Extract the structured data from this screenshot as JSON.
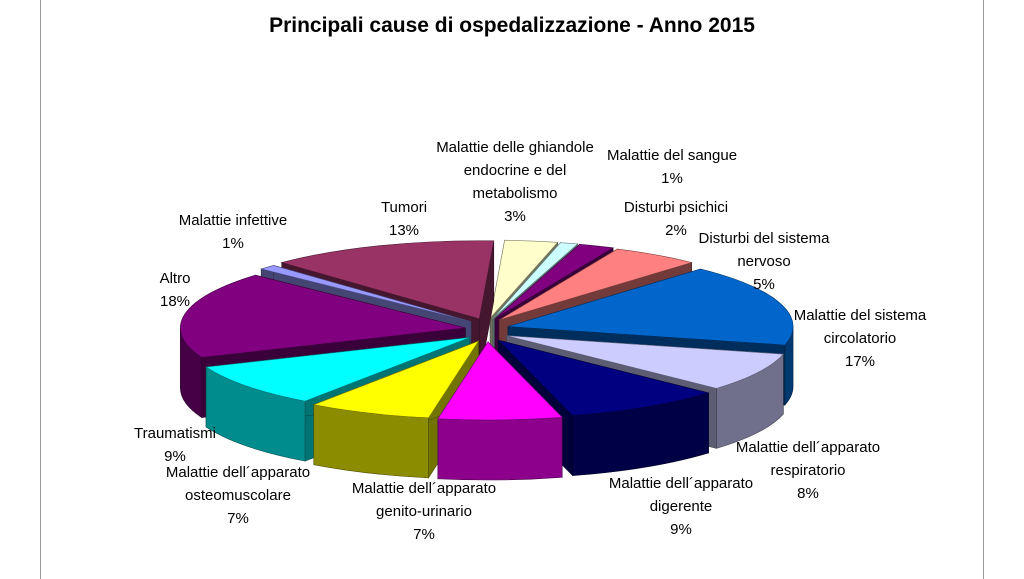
{
  "chart_data": {
    "type": "pie",
    "style": "3d-exploded",
    "title": "Principali cause di ospedalizzazione - Anno 2015",
    "legend": "none",
    "slices": [
      {
        "label": [
          "Malattie delle ghiandole",
          "endocrine e del",
          "metabolismo"
        ],
        "percent_label": "3%",
        "value": 3,
        "color": "#ffffcc"
      },
      {
        "label": [
          "Malattie del sangue"
        ],
        "percent_label": "1%",
        "value": 1,
        "color": "#ccffff"
      },
      {
        "label": [
          "Disturbi psichici"
        ],
        "percent_label": "2%",
        "value": 2,
        "color": "#800080"
      },
      {
        "label": [
          "Disturbi del sistema",
          "nervoso"
        ],
        "percent_label": "5%",
        "value": 5,
        "color": "#ff8080"
      },
      {
        "label": [
          "Malattie del sistema",
          "circolatorio"
        ],
        "percent_label": "17%",
        "value": 17,
        "color": "#0066cc"
      },
      {
        "label": [
          "Malattie dell´apparato",
          "respiratorio"
        ],
        "percent_label": "8%",
        "value": 8,
        "color": "#ccccff"
      },
      {
        "label": [
          "Malattie dell´apparato",
          "digerente"
        ],
        "percent_label": "9%",
        "value": 9,
        "color": "#000080"
      },
      {
        "label": [
          "Malattie dell´apparato",
          "genito-urinario"
        ],
        "percent_label": "7%",
        "value": 7,
        "color": "#ff00ff"
      },
      {
        "label": [
          "Malattie dell´apparato",
          "osteomuscolare"
        ],
        "percent_label": "7%",
        "value": 7,
        "color": "#ffff00"
      },
      {
        "label": [
          "Traumatismi"
        ],
        "percent_label": "9%",
        "value": 9,
        "color": "#00ffff"
      },
      {
        "label": [
          "Altro"
        ],
        "percent_label": "18%",
        "value": 18,
        "color": "#800080"
      },
      {
        "label": [
          "Malattie infettive"
        ],
        "percent_label": "1%",
        "value": 1,
        "color": "#9999ff"
      },
      {
        "label": [
          "Tumori"
        ],
        "percent_label": "13%",
        "value": 13,
        "color": "#993366"
      }
    ]
  }
}
